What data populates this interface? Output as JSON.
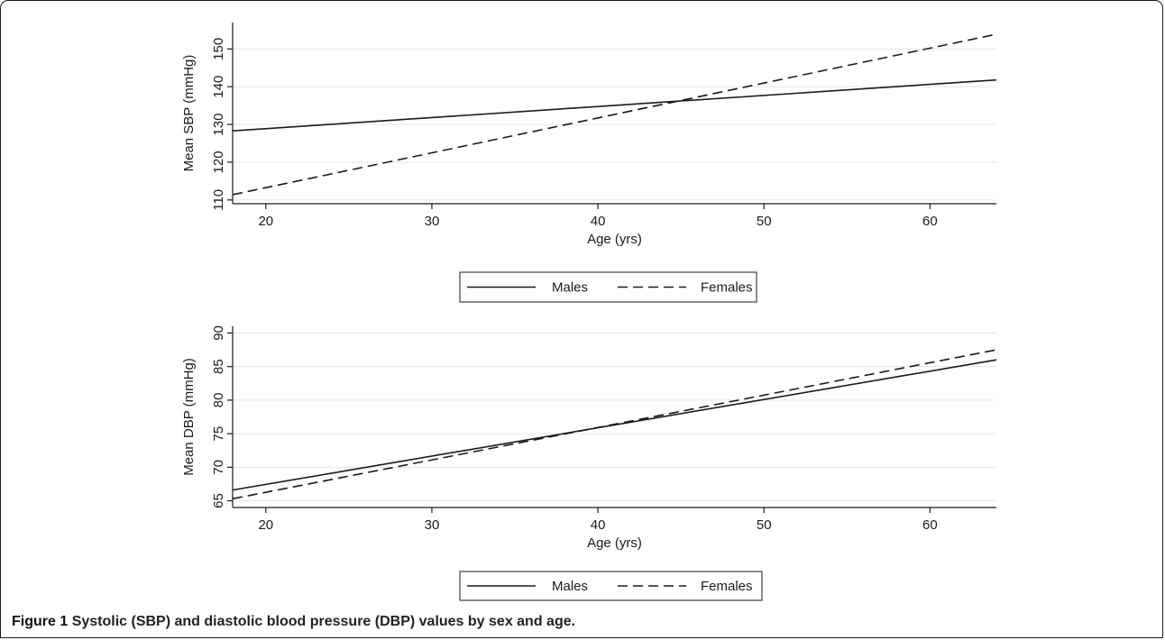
{
  "chart_data": [
    {
      "type": "line",
      "title": "",
      "xlabel": "Age (yrs)",
      "ylabel": "Mean SBP (mmHg)",
      "xlim": [
        18,
        64
      ],
      "ylim": [
        109,
        157
      ],
      "xticks": [
        20,
        30,
        40,
        50,
        60
      ],
      "yticks": [
        110,
        120,
        130,
        140,
        150
      ],
      "grid": true,
      "legend_position": "bottom",
      "series": [
        {
          "name": "Males",
          "style": "solid",
          "x": [
            18,
            64
          ],
          "y": [
            128.3,
            141.8
          ]
        },
        {
          "name": "Females",
          "style": "dashed",
          "x": [
            18,
            64
          ],
          "y": [
            111.4,
            153.9
          ]
        }
      ]
    },
    {
      "type": "line",
      "title": "",
      "xlabel": "Age (yrs)",
      "ylabel": "Mean DBP (mmHg)",
      "xlim": [
        18,
        64
      ],
      "ylim": [
        64,
        91
      ],
      "xticks": [
        20,
        30,
        40,
        50,
        60
      ],
      "yticks": [
        65,
        70,
        75,
        80,
        85,
        90
      ],
      "grid": true,
      "legend_position": "bottom",
      "series": [
        {
          "name": "Males",
          "style": "solid",
          "x": [
            18,
            64
          ],
          "y": [
            66.6,
            86.0
          ]
        },
        {
          "name": "Females",
          "style": "dashed",
          "x": [
            18,
            64
          ],
          "y": [
            65.3,
            87.5
          ]
        }
      ]
    }
  ],
  "caption": {
    "label": "Figure 1",
    "text": "Systolic (SBP) and diastolic blood pressure (DBP) values by sex and age."
  }
}
